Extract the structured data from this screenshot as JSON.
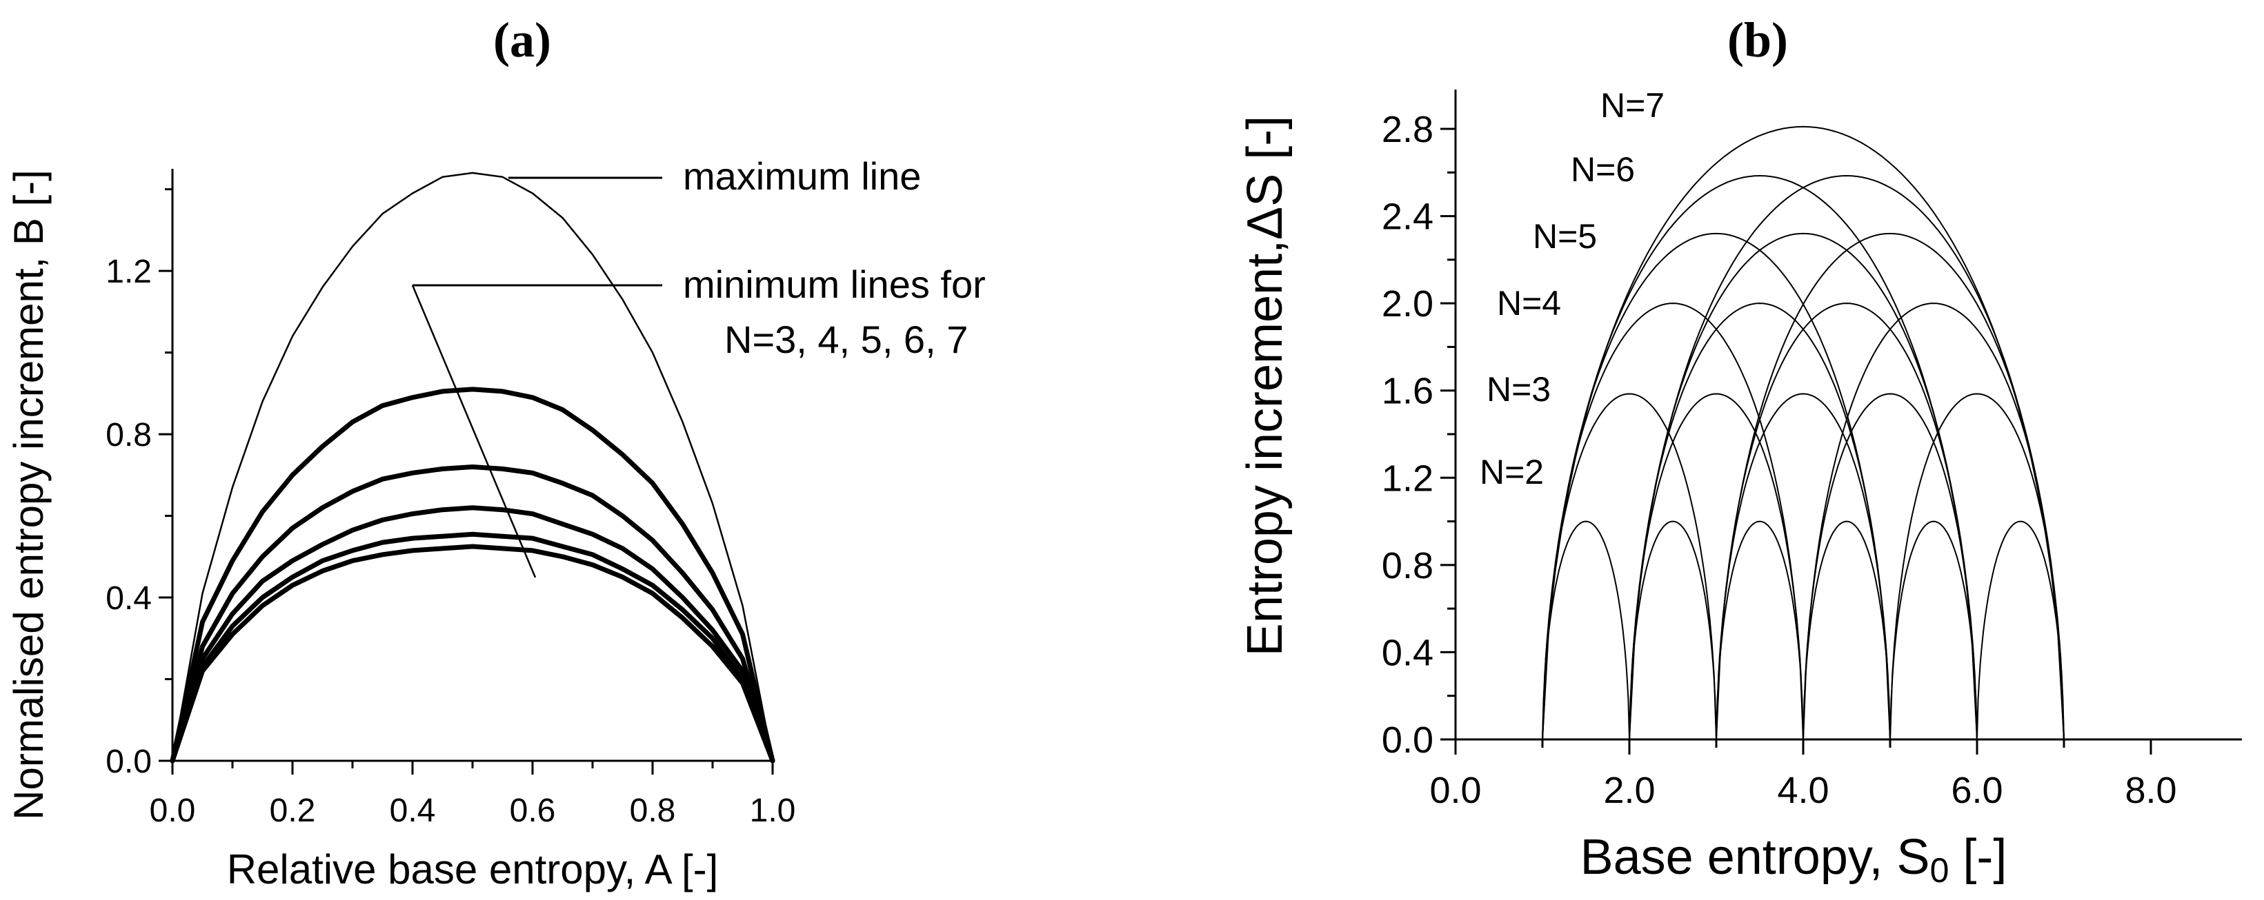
{
  "figure": {
    "colors": {
      "line": "#000000",
      "background": "#ffffff"
    }
  },
  "chart_data": [
    {
      "panel_label": "(a)",
      "type": "line",
      "title": "",
      "xlabel": "Relative base entropy, A [-]",
      "ylabel": "Normalised entropy increment,  B [-]",
      "xlim": [
        0,
        1
      ],
      "ylim": [
        0,
        1.45
      ],
      "xticks": [
        "0.0",
        "0.2",
        "0.4",
        "0.6",
        "0.8",
        "1.0"
      ],
      "yticks": [
        "0.0",
        "0.4",
        "0.8",
        "1.2"
      ],
      "grid": false,
      "annotations": {
        "maximum": "maximum line",
        "minimum_line1": "minimum lines for",
        "minimum_line2": "N=3, 4, 5, 6, 7"
      },
      "x": [
        0,
        0.05,
        0.1,
        0.15,
        0.2,
        0.25,
        0.3,
        0.35,
        0.4,
        0.45,
        0.5,
        0.55,
        0.6,
        0.65,
        0.7,
        0.75,
        0.8,
        0.85,
        0.9,
        0.95,
        1.0
      ],
      "series": [
        {
          "role": "maximum",
          "values": [
            0,
            0.41,
            0.67,
            0.88,
            1.04,
            1.16,
            1.26,
            1.34,
            1.39,
            1.43,
            1.44,
            1.43,
            1.39,
            1.33,
            1.24,
            1.13,
            1.0,
            0.83,
            0.63,
            0.38,
            0
          ]
        },
        {
          "role": "minimum",
          "values": [
            0,
            0.34,
            0.49,
            0.61,
            0.7,
            0.77,
            0.83,
            0.87,
            0.89,
            0.905,
            0.91,
            0.905,
            0.89,
            0.86,
            0.81,
            0.75,
            0.68,
            0.58,
            0.46,
            0.31,
            0
          ]
        },
        {
          "role": "minimum",
          "values": [
            0,
            0.28,
            0.41,
            0.5,
            0.57,
            0.62,
            0.66,
            0.69,
            0.705,
            0.715,
            0.72,
            0.715,
            0.705,
            0.68,
            0.65,
            0.6,
            0.54,
            0.46,
            0.37,
            0.25,
            0
          ]
        },
        {
          "role": "minimum",
          "values": [
            0,
            0.25,
            0.36,
            0.44,
            0.49,
            0.53,
            0.565,
            0.59,
            0.605,
            0.615,
            0.62,
            0.615,
            0.605,
            0.58,
            0.555,
            0.52,
            0.47,
            0.4,
            0.32,
            0.22,
            0
          ]
        },
        {
          "role": "minimum",
          "values": [
            0,
            0.23,
            0.33,
            0.4,
            0.45,
            0.49,
            0.515,
            0.535,
            0.545,
            0.55,
            0.555,
            0.55,
            0.545,
            0.525,
            0.505,
            0.47,
            0.43,
            0.37,
            0.3,
            0.2,
            0
          ]
        },
        {
          "role": "minimum",
          "values": [
            0,
            0.22,
            0.31,
            0.38,
            0.43,
            0.465,
            0.49,
            0.505,
            0.515,
            0.52,
            0.525,
            0.52,
            0.515,
            0.5,
            0.48,
            0.45,
            0.41,
            0.35,
            0.28,
            0.19,
            0
          ]
        }
      ]
    },
    {
      "panel_label": "(b)",
      "type": "line",
      "title": "",
      "xlabel_text": "Base entropy, S",
      "xlabel_sub": "0",
      "xlabel_unit": " [-]",
      "ylabel": "Entropy increment,",
      "ylabel_symbol": "ΔS",
      "ylabel_unit": " [-]",
      "xlim": [
        0,
        8
      ],
      "ylim": [
        0,
        2.9
      ],
      "xticks": [
        "0.0",
        "2.0",
        "4.0",
        "6.0",
        "8.0"
      ],
      "yticks": [
        "0.0",
        "0.4",
        "0.8",
        "1.2",
        "1.6",
        "2.0",
        "2.4",
        "2.8"
      ],
      "grid": false,
      "series_labels": [
        "N=2",
        "N=3",
        "N=4",
        "N=5",
        "N=6",
        "N=7"
      ],
      "arches": [
        {
          "N": 2,
          "from": 1,
          "to": 2,
          "peak": 1.0
        },
        {
          "N": 2,
          "from": 2,
          "to": 3,
          "peak": 1.0
        },
        {
          "N": 2,
          "from": 3,
          "to": 4,
          "peak": 1.0
        },
        {
          "N": 2,
          "from": 4,
          "to": 5,
          "peak": 1.0
        },
        {
          "N": 2,
          "from": 5,
          "to": 6,
          "peak": 1.0
        },
        {
          "N": 2,
          "from": 6,
          "to": 7,
          "peak": 1.0
        },
        {
          "N": 3,
          "from": 1,
          "to": 3,
          "peak": 1.585
        },
        {
          "N": 3,
          "from": 2,
          "to": 4,
          "peak": 1.585
        },
        {
          "N": 3,
          "from": 3,
          "to": 5,
          "peak": 1.585
        },
        {
          "N": 3,
          "from": 4,
          "to": 6,
          "peak": 1.585
        },
        {
          "N": 3,
          "from": 5,
          "to": 7,
          "peak": 1.585
        },
        {
          "N": 4,
          "from": 1,
          "to": 4,
          "peak": 2.0
        },
        {
          "N": 4,
          "from": 2,
          "to": 5,
          "peak": 2.0
        },
        {
          "N": 4,
          "from": 3,
          "to": 6,
          "peak": 2.0
        },
        {
          "N": 4,
          "from": 4,
          "to": 7,
          "peak": 2.0
        },
        {
          "N": 5,
          "from": 1,
          "to": 5,
          "peak": 2.32
        },
        {
          "N": 5,
          "from": 2,
          "to": 6,
          "peak": 2.32
        },
        {
          "N": 5,
          "from": 3,
          "to": 7,
          "peak": 2.32
        },
        {
          "N": 6,
          "from": 1,
          "to": 6,
          "peak": 2.585
        },
        {
          "N": 6,
          "from": 2,
          "to": 7,
          "peak": 2.585
        },
        {
          "N": 7,
          "from": 1,
          "to": 7,
          "peak": 2.81
        }
      ]
    }
  ]
}
